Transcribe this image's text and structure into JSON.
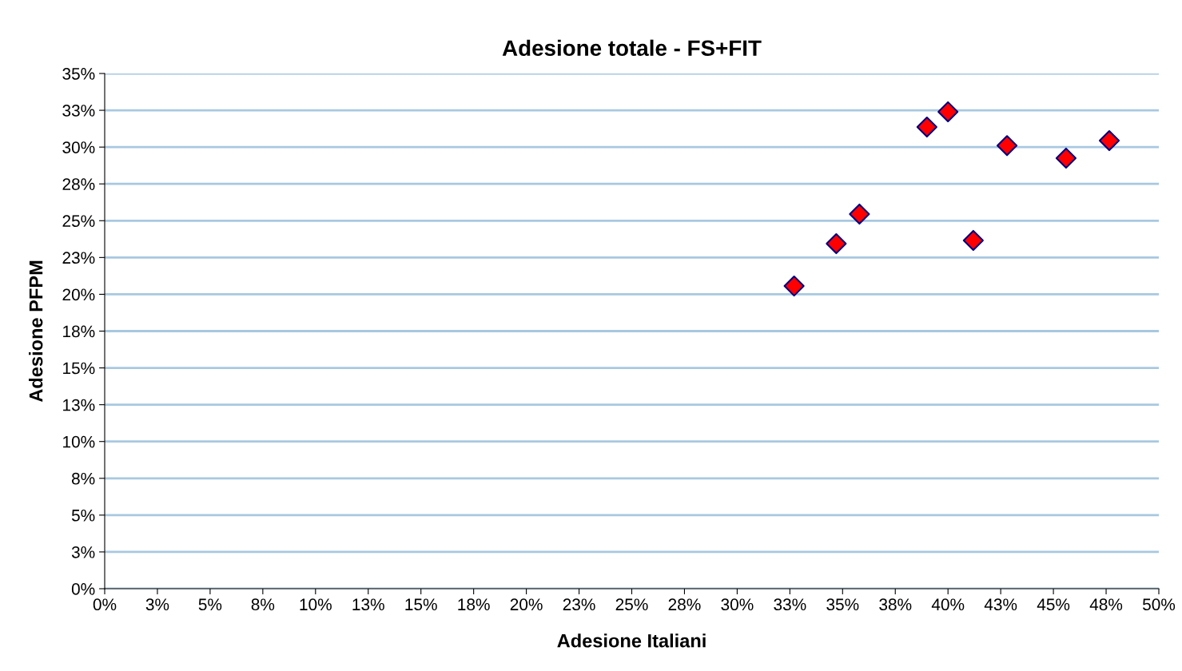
{
  "chart_data": {
    "type": "scatter",
    "title": "Adesione totale - FS+FIT",
    "xlabel": "Adesione Italiani",
    "ylabel": "Adesione PFPM",
    "x": [
      0.327,
      0.347,
      0.358,
      0.39,
      0.4,
      0.412,
      0.428,
      0.456,
      0.4765
    ],
    "series": [
      {
        "color": "#ff0000",
        "values": [
          0.2056,
          0.2344,
          0.2545,
          0.3136,
          0.324,
          0.2366,
          0.301,
          0.2925,
          0.3044
        ]
      }
    ],
    "marker": "diamond",
    "grid": "y",
    "legend": false,
    "xlim": [
      0,
      0.5
    ],
    "ylim": [
      0,
      0.35
    ],
    "xticks": [
      {
        "value": 0,
        "label": "0%"
      },
      {
        "value": 0.025,
        "label": "3%"
      },
      {
        "value": 0.05,
        "label": "5%"
      },
      {
        "value": 0.075,
        "label": "8%"
      },
      {
        "value": 0.1,
        "label": "10%"
      },
      {
        "value": 0.125,
        "label": "13%"
      },
      {
        "value": 0.15,
        "label": "15%"
      },
      {
        "value": 0.175,
        "label": "18%"
      },
      {
        "value": 0.2,
        "label": "20%"
      },
      {
        "value": 0.225,
        "label": "23%"
      },
      {
        "value": 0.25,
        "label": "25%"
      },
      {
        "value": 0.275,
        "label": "28%"
      },
      {
        "value": 0.3,
        "label": "30%"
      },
      {
        "value": 0.325,
        "label": "33%"
      },
      {
        "value": 0.35,
        "label": "35%"
      },
      {
        "value": 0.375,
        "label": "38%"
      },
      {
        "value": 0.4,
        "label": "40%"
      },
      {
        "value": 0.425,
        "label": "43%"
      },
      {
        "value": 0.45,
        "label": "45%"
      },
      {
        "value": 0.475,
        "label": "48%"
      },
      {
        "value": 0.5,
        "label": "50%"
      }
    ],
    "yticks": [
      {
        "value": 0,
        "label": "0%"
      },
      {
        "value": 0.025,
        "label": "3%"
      },
      {
        "value": 0.05,
        "label": "5%"
      },
      {
        "value": 0.075,
        "label": "8%"
      },
      {
        "value": 0.1,
        "label": "10%"
      },
      {
        "value": 0.125,
        "label": "13%"
      },
      {
        "value": 0.15,
        "label": "15%"
      },
      {
        "value": 0.175,
        "label": "18%"
      },
      {
        "value": 0.2,
        "label": "20%"
      },
      {
        "value": 0.225,
        "label": "23%"
      },
      {
        "value": 0.25,
        "label": "25%"
      },
      {
        "value": 0.275,
        "label": "28%"
      },
      {
        "value": 0.3,
        "label": "30%"
      },
      {
        "value": 0.325,
        "label": "33%"
      },
      {
        "value": 0.35,
        "label": "35%"
      }
    ]
  }
}
